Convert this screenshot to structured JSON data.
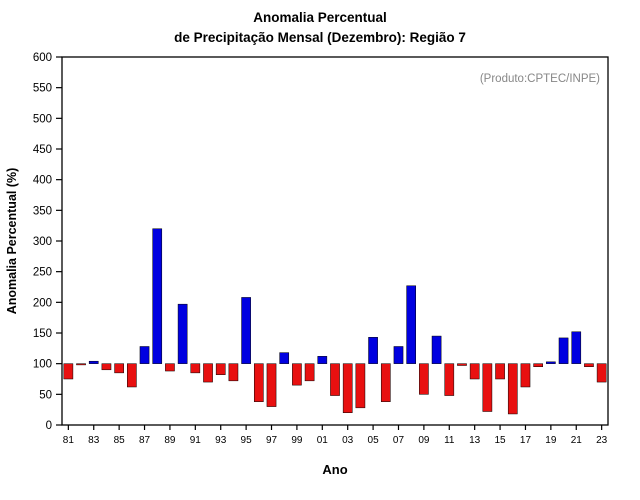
{
  "chart_data": {
    "type": "bar",
    "title_line1": "Anomalia Percentual",
    "title_line2": "de Precipitação Mensal (Dezembro): Região 7",
    "annotation": "(Produto:CPTEC/INPE)",
    "ylabel": "Anomalia Percentual (%)",
    "xlabel": "Ano",
    "ylim": [
      0,
      600
    ],
    "ytick_step": 50,
    "baseline": 100,
    "grid": false,
    "legend_position": "none",
    "years": [
      1981,
      1982,
      1983,
      1984,
      1985,
      1986,
      1987,
      1988,
      1989,
      1990,
      1991,
      1992,
      1993,
      1994,
      1995,
      1996,
      1997,
      1998,
      1999,
      2000,
      2001,
      2002,
      2003,
      2004,
      2005,
      2006,
      2007,
      2008,
      2009,
      2010,
      2011,
      2012,
      2013,
      2014,
      2015,
      2016,
      2017,
      2018,
      2019,
      2020,
      2021,
      2022,
      2023
    ],
    "values": [
      75,
      98,
      104,
      90,
      85,
      62,
      128,
      320,
      88,
      197,
      85,
      70,
      82,
      72,
      208,
      38,
      30,
      118,
      65,
      72,
      112,
      48,
      20,
      28,
      143,
      38,
      128,
      227,
      50,
      145,
      48,
      97,
      75,
      22,
      75,
      18,
      62,
      95,
      103,
      142,
      152,
      95,
      70
    ],
    "x_tick_labels": [
      "81",
      "83",
      "85",
      "87",
      "89",
      "91",
      "93",
      "95",
      "97",
      "99",
      "01",
      "03",
      "05",
      "07",
      "09",
      "11",
      "13",
      "15",
      "17",
      "19",
      "21",
      "23"
    ],
    "colors": {
      "above": "#0000e0",
      "below": "#e81010"
    }
  }
}
